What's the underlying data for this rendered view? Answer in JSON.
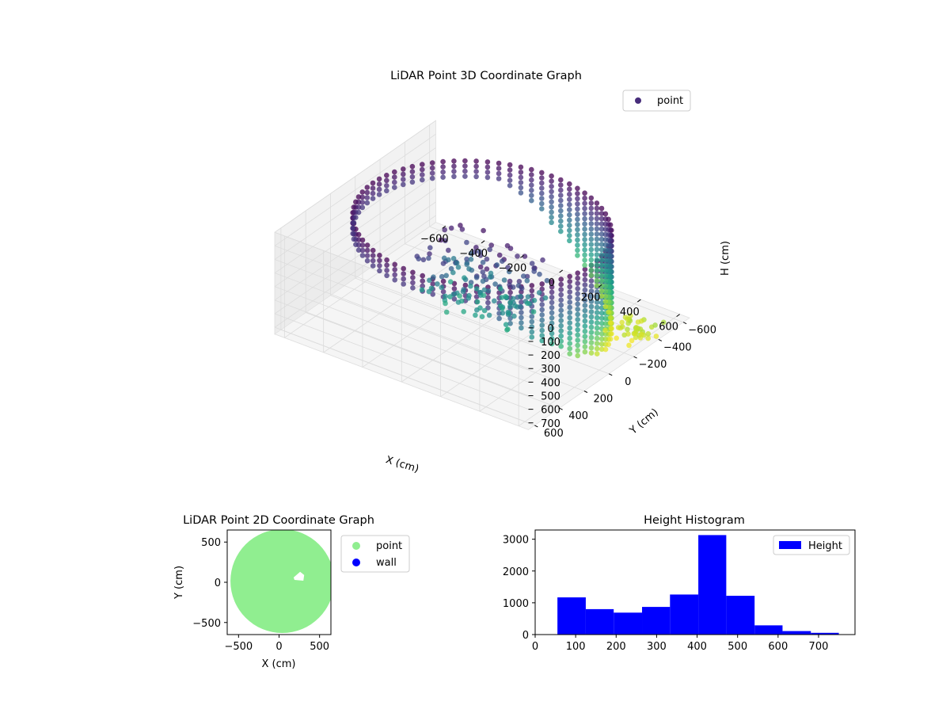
{
  "colors": {
    "point_3d_legend": "#472d7b",
    "point_2d": "#90ee90",
    "wall_2d": "#0000ff",
    "histogram_bar": "#0000ff",
    "pane_fill": "#f2f2f2",
    "grid": "#dcdcdc",
    "colormap": "viridis"
  },
  "chart_data": [
    {
      "type": "scatter",
      "projection": "3d",
      "title": "LiDAR Point 3D Coordinate Graph",
      "xlabel": "X (cm)",
      "ylabel": "Y (cm)",
      "zlabel": "H (cm)",
      "xticks": [
        -600,
        -400,
        -200,
        0,
        200,
        400,
        600
      ],
      "yticks": [
        -600,
        -400,
        -200,
        0,
        200,
        400,
        600
      ],
      "zticks": [
        0,
        100,
        200,
        300,
        400,
        500,
        600,
        700
      ],
      "xlim": [
        -650,
        650
      ],
      "ylim": [
        -650,
        650
      ],
      "zlim": [
        0,
        750
      ],
      "z_inverted": true,
      "color_by": "height",
      "legend": {
        "placement": "upper-right",
        "entries": [
          "point"
        ]
      },
      "series": [
        {
          "name": "point",
          "shape": "cylindrical wall of points, radius ≈ 560 cm, heights from 0 to ≈ 750 cm, with an interior cluster of points near (200, 200) at heights 50–450 cm"
        }
      ]
    },
    {
      "type": "scatter",
      "title": "LiDAR Point 2D Coordinate Graph",
      "xlabel": "X (cm)",
      "ylabel": "Y (cm)",
      "xticks": [
        -500,
        0,
        500
      ],
      "yticks": [
        -500,
        0,
        500
      ],
      "xlim": [
        -640,
        640
      ],
      "ylim": [
        -650,
        650
      ],
      "legend": {
        "placement": "outside-right",
        "entries": [
          "point",
          "wall"
        ]
      },
      "series": [
        {
          "name": "point",
          "shape": "filled disc of radius ≈ 640 cm centered at (0, 0)"
        },
        {
          "name": "wall",
          "points": []
        }
      ]
    },
    {
      "type": "bar",
      "title": "Height Histogram",
      "xlabel": "",
      "ylabel": "",
      "xticks": [
        0,
        100,
        200,
        300,
        400,
        500,
        600,
        700
      ],
      "yticks": [
        0,
        1000,
        2000,
        3000
      ],
      "xlim": [
        0,
        790
      ],
      "ylim": [
        0,
        3290
      ],
      "legend": {
        "placement": "upper-right",
        "entries": [
          "Height"
        ]
      },
      "bins": [
        {
          "x0": 55,
          "x1": 125,
          "count": 1170
        },
        {
          "x0": 125,
          "x1": 194,
          "count": 800
        },
        {
          "x0": 194,
          "x1": 264,
          "count": 690
        },
        {
          "x0": 264,
          "x1": 333,
          "count": 870
        },
        {
          "x0": 333,
          "x1": 403,
          "count": 1260
        },
        {
          "x0": 403,
          "x1": 472,
          "count": 3130
        },
        {
          "x0": 472,
          "x1": 542,
          "count": 1220
        },
        {
          "x0": 542,
          "x1": 611,
          "count": 290
        },
        {
          "x0": 611,
          "x1": 681,
          "count": 110
        },
        {
          "x0": 681,
          "x1": 750,
          "count": 55
        }
      ]
    }
  ]
}
